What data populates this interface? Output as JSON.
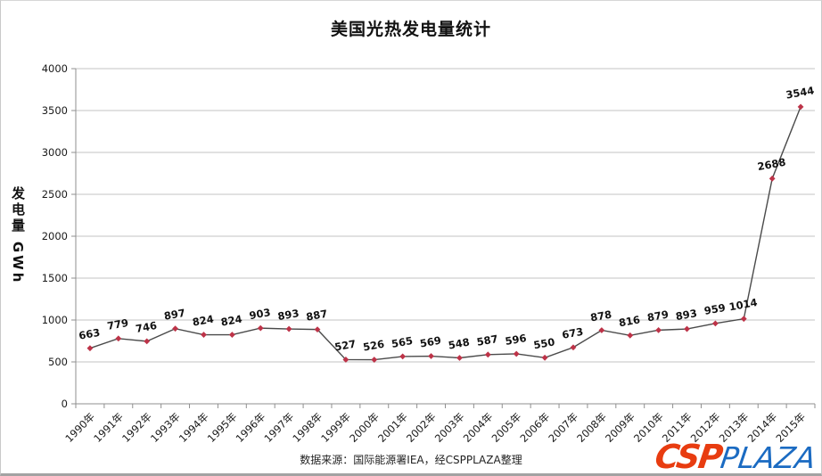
{
  "chart": {
    "title": "美国光热发电量统计",
    "y_axis_title": "发电量 GWh",
    "source_note": "数据来源：国际能源署IEA，经CSPPLAZA整理",
    "logo": {
      "csp_text": "CSP",
      "plaza_text": "PLAZA",
      "csp_color": "#e83c10",
      "plaza_color": "#1b6bc2"
    }
  },
  "chart_data": {
    "type": "line",
    "title": "美国光热发电量统计",
    "xlabel": "",
    "ylabel": "发电量 GWh",
    "categories": [
      "1990年",
      "1991年",
      "1992年",
      "1993年",
      "1994年",
      "1995年",
      "1996年",
      "1997年",
      "1998年",
      "1999年",
      "2000年",
      "2001年",
      "2002年",
      "2003年",
      "2004年",
      "2005年",
      "2006年",
      "2007年",
      "2008年",
      "2009年",
      "2010年",
      "2011年",
      "2012年",
      "2013年",
      "2014年",
      "2015年"
    ],
    "values": [
      663,
      779,
      746,
      897,
      824,
      824,
      903,
      893,
      887,
      527,
      526,
      565,
      569,
      548,
      587,
      596,
      550,
      673,
      878,
      816,
      879,
      893,
      959,
      1014,
      2688,
      3544
    ],
    "ylim": [
      0,
      4000
    ],
    "ytick_step": 500,
    "grid": true,
    "legend_position": "none",
    "data_labels_shown": true,
    "data_label_rotation_deg": -10,
    "x_tick_label_rotation_deg": -45,
    "line_color": "#4a4a4a",
    "marker_shape": "diamond",
    "marker_color": "#bd3348",
    "grid_color": "#c3c3c3",
    "axis_color": "#8f8f8f",
    "tick_label_color": "#1a1a1a",
    "data_label_color": "#111111"
  }
}
